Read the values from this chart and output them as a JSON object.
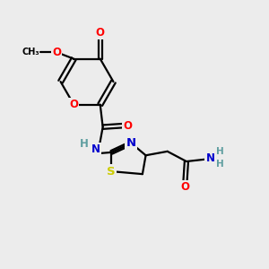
{
  "bg_color": "#ececec",
  "bond_color": "#000000",
  "atom_colors": {
    "O": "#ff0000",
    "N": "#0000cd",
    "S": "#cccc00",
    "C": "#000000",
    "H": "#5f9ea0"
  },
  "figsize": [
    3.0,
    3.0
  ],
  "dpi": 100,
  "lw": 1.6,
  "fs": 8.5
}
